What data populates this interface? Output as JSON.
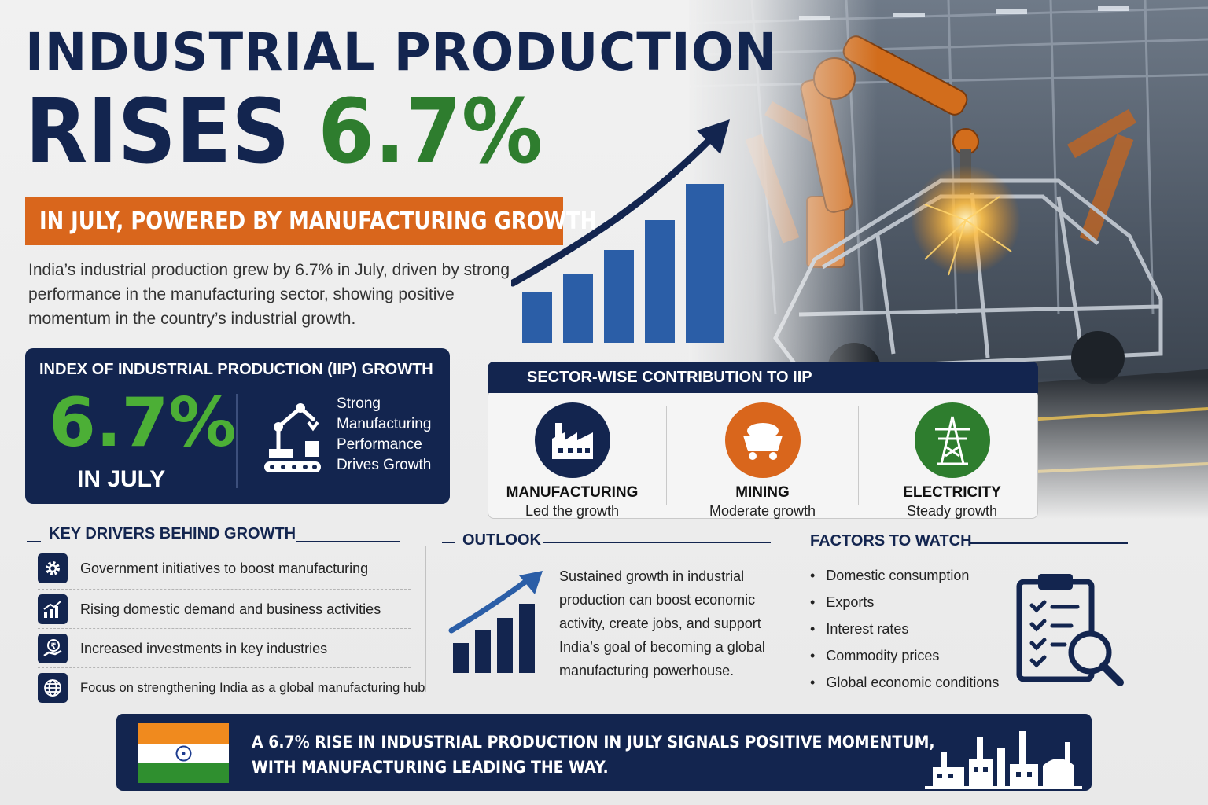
{
  "title": {
    "line1": "INDUSTRIAL PRODUCTION",
    "line2_prefix": "RISES ",
    "line2_highlight": "6.7%"
  },
  "subtitle": "IN JULY, POWERED BY MANUFACTURING GROWTH",
  "intro": "India’s industrial production grew by 6.7% in July, driven by strong performance in the manufacturing sector, showing positive momentum in the country’s industrial growth.",
  "iip": {
    "title": "INDEX OF INDUSTRIAL PRODUCTION (IIP) GROWTH",
    "value": "6.7%",
    "month": "IN JULY",
    "description": "Strong Manufacturing Performance Drives Growth",
    "icon": "robot-arm-icon"
  },
  "sectors": {
    "title": "SECTOR-WISE CONTRIBUTION TO IIP",
    "items": [
      {
        "name": "MANUFACTURING",
        "note": "Led the growth",
        "icon": "factory-icon",
        "color": "#13254f"
      },
      {
        "name": "MINING",
        "note": "Moderate growth",
        "icon": "mine-cart-icon",
        "color": "#d9661c"
      },
      {
        "name": "ELECTRICITY",
        "note": "Steady growth",
        "icon": "power-tower-icon",
        "color": "#2e7d2e"
      }
    ]
  },
  "drivers": {
    "title": "KEY DRIVERS BEHIND GROWTH",
    "items": [
      {
        "text": "Government initiatives to boost manufacturing",
        "icon": "gear-icon"
      },
      {
        "text": "Rising domestic demand and business activities",
        "icon": "growth-chart-icon"
      },
      {
        "text": "Increased investments in key industries",
        "icon": "rupee-hand-icon"
      },
      {
        "text": "Focus on strengthening India as a global manufacturing hub",
        "icon": "globe-icon"
      }
    ]
  },
  "outlook": {
    "title": "OUTLOOK",
    "text": "Sustained growth in industrial production can boost economic activity, create jobs, and support India’s goal of becoming a global manufacturing powerhouse."
  },
  "factors": {
    "title": "FACTORS TO WATCH",
    "items": [
      "Domestic consumption",
      "Exports",
      "Interest rates",
      "Commodity prices",
      "Global economic conditions"
    ],
    "icon": "clipboard-search-icon"
  },
  "banner": {
    "line1": "A 6.7% RISE IN INDUSTRIAL PRODUCTION IN JULY SIGNALS POSITIVE MOMENTUM,",
    "line2": "WITH MANUFACTURING LEADING THE WAY."
  },
  "colors": {
    "navy": "#13254f",
    "green": "#2e7d2e",
    "orange": "#d9661c",
    "bar_blue": "#2b5ea7"
  }
}
